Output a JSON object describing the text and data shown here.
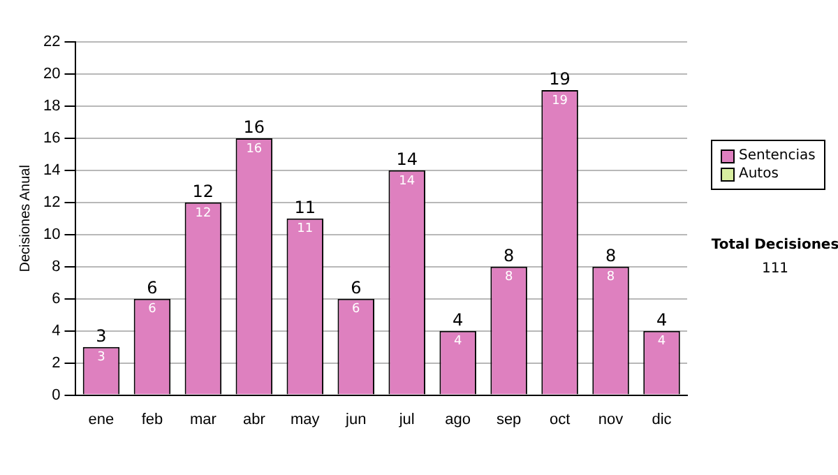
{
  "chart_data": {
    "type": "bar",
    "ylabel": "Decisiones Anual",
    "categories": [
      "ene",
      "feb",
      "mar",
      "abr",
      "may",
      "jun",
      "jul",
      "ago",
      "sep",
      "oct",
      "nov",
      "dic"
    ],
    "series": [
      {
        "name": "Sentencias",
        "color": "#de80bf",
        "values": [
          3,
          6,
          12,
          16,
          11,
          6,
          14,
          4,
          8,
          19,
          8,
          4
        ]
      },
      {
        "name": "Autos",
        "color": "#d8eea0",
        "values": [
          null,
          null,
          null,
          null,
          null,
          null,
          null,
          null,
          null,
          null,
          null,
          null
        ]
      }
    ],
    "ylim": [
      0,
      22
    ],
    "yticks": [
      0,
      2,
      4,
      6,
      8,
      10,
      12,
      14,
      16,
      18,
      20,
      22
    ],
    "grid": "y",
    "legend": "right",
    "data_labels": true,
    "totals": [
      "3",
      "6",
      "12",
      "16",
      "11",
      "6",
      "14",
      "4",
      "8",
      "19",
      "8",
      "4"
    ],
    "annotations": [
      "Total Decisiones",
      "111"
    ]
  }
}
